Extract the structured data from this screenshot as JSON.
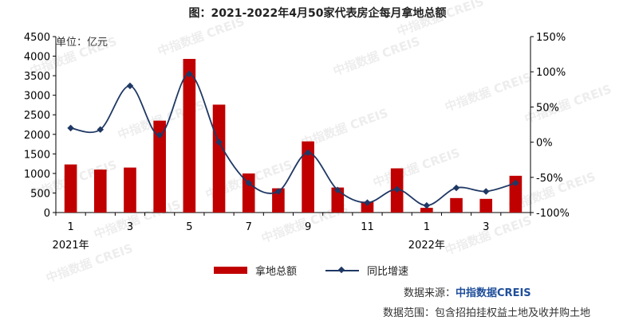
{
  "title": "图：2021-2022年4月50家代表房企每月拿地总额",
  "unit_label": "单位：亿元",
  "watermark": "中指数据 CREIS",
  "source": {
    "prefix": "数据来源：",
    "brand": "中指数据CREIS"
  },
  "scope": "数据范围：包含招拍挂权益土地及收并购土地",
  "legend": {
    "bar": "拿地总额",
    "line": "同比增速"
  },
  "colors": {
    "bar": "#c00000",
    "line": "#1f3864"
  },
  "chart_data": {
    "type": "bar",
    "categories": [
      "2021-01",
      "2021-02",
      "2021-03",
      "2021-04",
      "2021-05",
      "2021-06",
      "2021-07",
      "2021-08",
      "2021-09",
      "2021-10",
      "2021-11",
      "2021-12",
      "2022-01",
      "2022-02",
      "2022-03",
      "2022-04"
    ],
    "x_tick_labels": [
      "1",
      "",
      "3",
      "",
      "5",
      "",
      "7",
      "",
      "9",
      "",
      "11",
      "",
      "1",
      "",
      "3",
      ""
    ],
    "year_labels": [
      {
        "index": 0,
        "text": "2021年"
      },
      {
        "index": 12,
        "text": "2022年"
      }
    ],
    "series": [
      {
        "name": "拿地总额",
        "type": "bar",
        "axis": "left",
        "values": [
          1230,
          1100,
          1150,
          2350,
          3930,
          2760,
          1000,
          620,
          1820,
          640,
          280,
          1130,
          120,
          370,
          350,
          940
        ]
      },
      {
        "name": "同比增速",
        "type": "line",
        "axis": "right",
        "smooth": true,
        "marker": "diamond",
        "values": [
          20,
          18,
          80,
          10,
          97,
          0,
          -58,
          -70,
          -15,
          -68,
          -86,
          -67,
          -90,
          -65,
          -70,
          -58
        ]
      }
    ],
    "y_left": {
      "min": 0,
      "max": 4500,
      "ticks": [
        0,
        500,
        1000,
        1500,
        2000,
        2500,
        3000,
        3500,
        4000,
        4500
      ]
    },
    "y_right": {
      "min": -100,
      "max": 150,
      "ticks": [
        "-100%",
        "-50%",
        "0%",
        "50%",
        "100%",
        "150%"
      ]
    },
    "grid": false,
    "legend_position": "bottom"
  }
}
